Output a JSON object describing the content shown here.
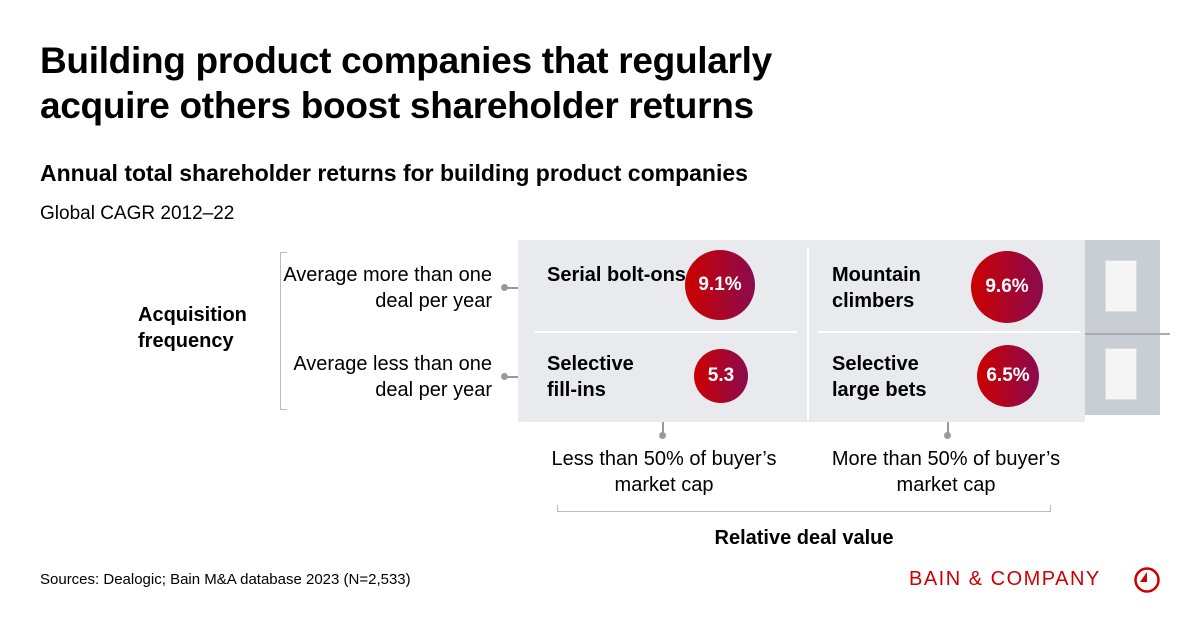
{
  "title": "Building product companies that regularly acquire others boost shareholder returns",
  "subtitle": "Annual total shareholder returns for building product companies",
  "metric": "Global CAGR 2012–22",
  "y_axis": {
    "label": "Acquisition frequency",
    "rows": [
      "Average more than one deal per year",
      "Average less than one deal per year"
    ]
  },
  "x_axis": {
    "label": "Relative deal value",
    "cols": [
      "Less than 50% of buyer’s market cap",
      "More than 50% of buyer’s market cap"
    ]
  },
  "cells": [
    {
      "name": "Serial bolt-ons",
      "value": "9.1%"
    },
    {
      "name": "Mountain climbers",
      "value": "9.6%"
    },
    {
      "name": "Selective fill-ins",
      "value": "5.3"
    },
    {
      "name": "Selective large bets",
      "value": "6.5%"
    }
  ],
  "source": "Sources: Dealogic; Bain M&A database 2023 (N=2,533)",
  "brand": "BAIN & COMPANY",
  "colors": {
    "accent": "#cc0000",
    "gradient_end": "#8a0b4f",
    "grid_bg": "#e8eaee"
  }
}
